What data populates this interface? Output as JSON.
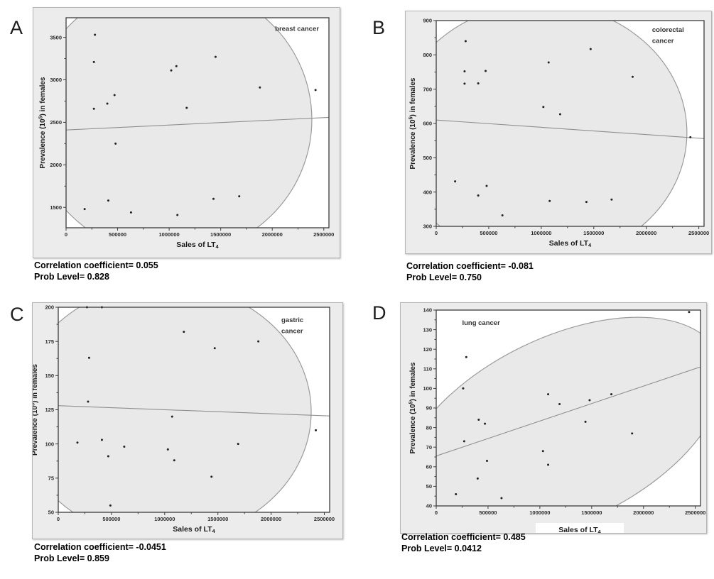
{
  "page": {
    "background": "#ffffff"
  },
  "colors": {
    "panel_background": "#ececec",
    "panel_border": "#b5b5b5",
    "plot_background": "#ffffff",
    "plot_frame": "#3c3c3c",
    "ellipse_fill": "#e9e9e9",
    "ellipse_stroke": "#9b9b9b",
    "regression_line": "#8f8f8f",
    "data_point": "#222222",
    "tick_text": "#2a2a2a",
    "title_text": "#333333"
  },
  "chart_data": {
    "type": "scatter",
    "x_axis": {
      "label_pre": "Sales of LT",
      "label_sub": "4",
      "ticks": [
        0,
        500000,
        1000000,
        1500000,
        2000000,
        2500000
      ],
      "lim": [
        0,
        2550000
      ]
    },
    "y_axis": {
      "label_pre": "Prevalence (10",
      "label_sup": "5",
      "label_post": ") in females"
    },
    "panels": [
      {
        "letter": "A",
        "title_lines": [
          "breast cancer"
        ],
        "correlation_coefficient": "0.055",
        "prob_level": "0.828",
        "caption1": "Correlation coefficient= 0.055",
        "caption2": "Prob Level= 0.828",
        "ylim": [
          1260,
          3730
        ],
        "y_ticks": [
          1500,
          2000,
          2500,
          3000,
          3500
        ],
        "regression": {
          "y_at_xmin": 2410,
          "y_at_xmax": 2558
        },
        "ellipse": {
          "cx": 0.4,
          "cy": 0.485,
          "rx": 0.535,
          "ry": 0.65,
          "rotate": 0
        },
        "points": [
          [
            280000,
            3530
          ],
          [
            270000,
            3210
          ],
          [
            1450000,
            3270
          ],
          [
            1020000,
            3110
          ],
          [
            1070000,
            3160
          ],
          [
            1880000,
            2910
          ],
          [
            2420000,
            2880
          ],
          [
            470000,
            2820
          ],
          [
            400000,
            2720
          ],
          [
            270000,
            2660
          ],
          [
            1170000,
            2670
          ],
          [
            480000,
            2250
          ],
          [
            410000,
            1580
          ],
          [
            180000,
            1480
          ],
          [
            630000,
            1440
          ],
          [
            1430000,
            1600
          ],
          [
            1680000,
            1630
          ],
          [
            1080000,
            1410
          ]
        ]
      },
      {
        "letter": "B",
        "title_lines": [
          "colorectal",
          "cancer"
        ],
        "correlation_coefficient": "-0.081",
        "prob_level": "0.750",
        "caption1": "Correlation coefficient= -0.081",
        "caption2": "Prob Level= 0.750",
        "ylim": [
          300,
          900
        ],
        "y_ticks": [
          300,
          400,
          500,
          600,
          700,
          800,
          900
        ],
        "regression": {
          "y_at_xmin": 610,
          "y_at_xmax": 556
        },
        "ellipse": {
          "cx": 0.39,
          "cy": 0.545,
          "rx": 0.546,
          "ry": 0.627,
          "rotate": 0
        },
        "points": [
          [
            280000,
            840
          ],
          [
            1470000,
            817
          ],
          [
            1070000,
            778
          ],
          [
            270000,
            752
          ],
          [
            470000,
            753
          ],
          [
            270000,
            716
          ],
          [
            400000,
            717
          ],
          [
            1870000,
            736
          ],
          [
            1020000,
            648
          ],
          [
            1180000,
            627
          ],
          [
            180000,
            431
          ],
          [
            480000,
            418
          ],
          [
            400000,
            390
          ],
          [
            1080000,
            374
          ],
          [
            1430000,
            371
          ],
          [
            1670000,
            378
          ],
          [
            630000,
            332
          ],
          [
            2420000,
            560
          ]
        ]
      },
      {
        "letter": "C",
        "title_lines": [
          "gastric",
          "cancer"
        ],
        "correlation_coefficient": "-0.0451",
        "prob_level": "0.859",
        "caption1": "Correlation coefficient= -0.0451",
        "caption2": "Prob Level= 0.859",
        "ylim": [
          50,
          200
        ],
        "y_ticks": [
          50,
          75,
          100,
          125,
          150,
          175,
          200
        ],
        "regression": {
          "y_at_xmin": 128,
          "y_at_xmax": 120.5
        },
        "ellipse": {
          "cx": 0.39,
          "cy": 0.51,
          "rx": 0.542,
          "ry": 0.624,
          "rotate": 0
        },
        "points": [
          [
            270000,
            200
          ],
          [
            410000,
            200
          ],
          [
            1180000,
            182
          ],
          [
            1880000,
            175
          ],
          [
            1470000,
            170
          ],
          [
            290000,
            163
          ],
          [
            280000,
            131
          ],
          [
            1070000,
            120
          ],
          [
            180000,
            101
          ],
          [
            410000,
            103
          ],
          [
            1690000,
            100
          ],
          [
            620000,
            98
          ],
          [
            1030000,
            96
          ],
          [
            470000,
            91
          ],
          [
            1090000,
            88
          ],
          [
            1440000,
            76
          ],
          [
            2420000,
            110
          ],
          [
            490000,
            55
          ]
        ]
      },
      {
        "letter": "D",
        "title_lines": [
          "lung cancer"
        ],
        "correlation_coefficient": "0.485",
        "prob_level": "0.0412",
        "caption1": "Correlation coefficient= 0.485",
        "caption2": "Prob Level= 0.0412",
        "ylim": [
          40,
          140
        ],
        "y_ticks": [
          40,
          50,
          60,
          70,
          80,
          90,
          100,
          110,
          120,
          130,
          140
        ],
        "regression": {
          "y_at_xmin": 65.5,
          "y_at_xmax": 111
        },
        "ellipse": {
          "cx": 0.476,
          "cy": 0.612,
          "rx": 0.659,
          "ry": 0.471,
          "rotate": -26
        },
        "points": [
          [
            2440000,
            139
          ],
          [
            290000,
            116
          ],
          [
            260000,
            100
          ],
          [
            1080000,
            97
          ],
          [
            1690000,
            97
          ],
          [
            1480000,
            94
          ],
          [
            1190000,
            92
          ],
          [
            410000,
            84
          ],
          [
            470000,
            82
          ],
          [
            1440000,
            83
          ],
          [
            1890000,
            77
          ],
          [
            270000,
            73
          ],
          [
            1030000,
            68
          ],
          [
            490000,
            63
          ],
          [
            1080000,
            61
          ],
          [
            400000,
            54
          ],
          [
            190000,
            46
          ],
          [
            630000,
            44
          ]
        ]
      }
    ]
  }
}
